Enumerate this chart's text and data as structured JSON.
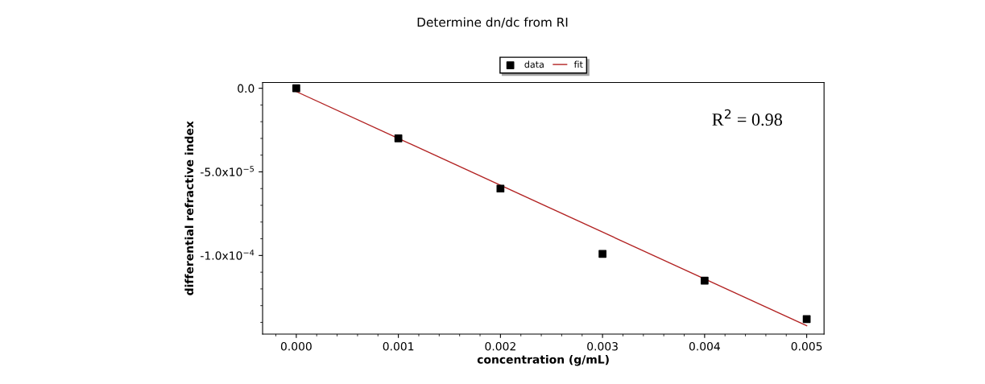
{
  "chart_data": {
    "type": "scatter",
    "title": "Determine dn/dc from RI",
    "xlabel": "concentration (g/mL)",
    "ylabel": "differential refractive index",
    "x": [
      0,
      0.001,
      0.002,
      0.003,
      0.004,
      0.005
    ],
    "series": [
      {
        "name": "data",
        "color": "#000000",
        "marker": "square",
        "values": [
          0,
          -3e-05,
          -6e-05,
          -9.9e-05,
          -0.000115,
          -0.000138
        ]
      },
      {
        "name": "fit",
        "type": "line",
        "color": "#b22222",
        "line_style": "solid",
        "marker": "none",
        "x": [
          0,
          0.005
        ],
        "values": [
          -2e-06,
          -0.000142
        ]
      }
    ],
    "xlim": [
      -0.00033,
      0.00517
    ],
    "xticks": [
      {
        "value": 0,
        "label": "0.000"
      },
      {
        "value": 0.001,
        "label": "0.001"
      },
      {
        "value": 0.002,
        "label": "0.002"
      },
      {
        "value": 0.003,
        "label": "0.003"
      },
      {
        "value": 0.004,
        "label": "0.004"
      },
      {
        "value": 0.005,
        "label": "0.005"
      }
    ],
    "ylim": [
      -0.000147,
      3.4e-06
    ],
    "yticks": [
      {
        "value": 0,
        "label": "0.0"
      },
      {
        "value": -5e-05,
        "label": "-5.0x10$^{−5}$"
      },
      {
        "value": -0.0001,
        "label": "-1.0x10$^{−4}$"
      }
    ],
    "annotations": [
      "R$^{2}$ = 0.98"
    ],
    "legend": "top",
    "grid": false
  }
}
